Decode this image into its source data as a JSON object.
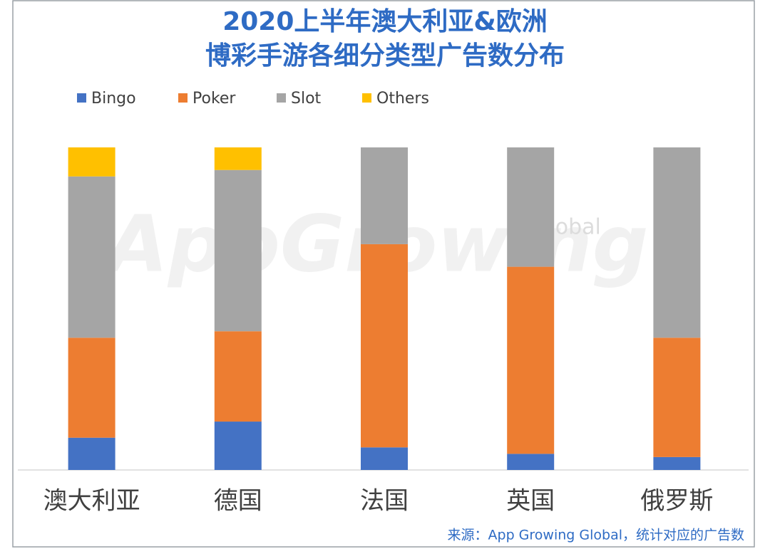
{
  "chart_data": {
    "type": "stacked_bar",
    "title": [
      "2020上半年澳大利亚&欧洲",
      "博彩手游各细分类型广告数分布"
    ],
    "categories": [
      "澳大利亚",
      "德国",
      "法国",
      "英国",
      "俄罗斯"
    ],
    "series": [
      {
        "name": "Bingo",
        "color": "#4472c4",
        "values": [
          10,
          15,
          7,
          5,
          4
        ]
      },
      {
        "name": "Poker",
        "color": "#ed7d31",
        "values": [
          31,
          28,
          63,
          58,
          37
        ]
      },
      {
        "name": "Slot",
        "color": "#a5a5a5",
        "values": [
          50,
          50,
          30,
          37,
          59
        ]
      },
      {
        "name": "Others",
        "color": "#ffc000",
        "values": [
          9,
          7,
          0,
          0,
          0
        ]
      }
    ],
    "ylim": [
      0,
      100
    ],
    "legend": "top",
    "watermark": [
      "AppGrowing",
      "Global"
    ],
    "source": "来源：App Growing Global，统计对应的广告数"
  }
}
